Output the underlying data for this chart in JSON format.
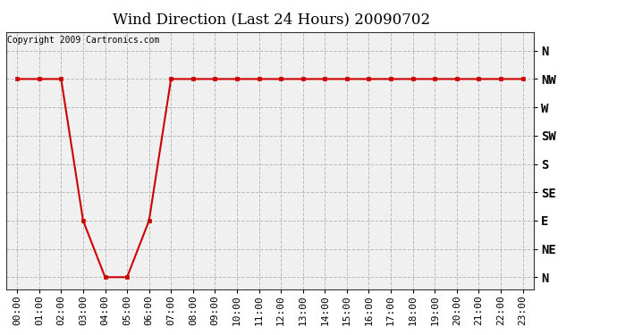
{
  "title": "Wind Direction (Last 24 Hours) 20090702",
  "copyright": "Copyright 2009 Cartronics.com",
  "outer_bg_color": "#ffffff",
  "plot_bg_color": "#f0f0f0",
  "line_color": "#cc0000",
  "marker_color": "#cc0000",
  "grid_color": "#bbbbbb",
  "hours": [
    0,
    1,
    2,
    3,
    4,
    5,
    6,
    7,
    8,
    9,
    10,
    11,
    12,
    13,
    14,
    15,
    16,
    17,
    18,
    19,
    20,
    21,
    22,
    23
  ],
  "wind_directions": [
    315,
    315,
    315,
    90,
    0,
    0,
    90,
    315,
    315,
    315,
    315,
    315,
    315,
    315,
    315,
    315,
    315,
    315,
    315,
    315,
    315,
    315,
    315,
    315
  ],
  "ytick_values": [
    360,
    315,
    270,
    225,
    180,
    135,
    90,
    45,
    0
  ],
  "ytick_labels": [
    "N",
    "NW",
    "W",
    "SW",
    "S",
    "SE",
    "E",
    "NE",
    "N"
  ],
  "ylim": [
    -20,
    390
  ],
  "xlim": [
    -0.5,
    23.5
  ],
  "title_fontsize": 12,
  "copyright_fontsize": 7,
  "tick_fontsize": 8,
  "ytick_fontsize": 10,
  "marker_size": 3,
  "line_width": 1.5
}
